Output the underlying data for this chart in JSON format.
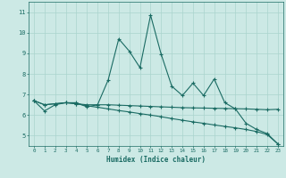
{
  "xlabel": "Humidex (Indice chaleur)",
  "xlim": [
    -0.5,
    23.5
  ],
  "ylim": [
    4.5,
    11.5
  ],
  "yticks": [
    5,
    6,
    7,
    8,
    9,
    10,
    11
  ],
  "xticks": [
    0,
    1,
    2,
    3,
    4,
    5,
    6,
    7,
    8,
    9,
    10,
    11,
    12,
    13,
    14,
    15,
    16,
    17,
    18,
    19,
    20,
    21,
    22,
    23
  ],
  "bg_color": "#cce9e5",
  "line_color": "#1a6b63",
  "grid_color": "#aad4ce",
  "line1_y": [
    6.7,
    6.2,
    6.5,
    6.6,
    6.6,
    6.4,
    6.5,
    7.7,
    9.7,
    9.1,
    8.3,
    10.85,
    8.95,
    7.4,
    6.95,
    7.55,
    6.95,
    7.75,
    6.6,
    6.3,
    5.6,
    5.3,
    5.1,
    4.6
  ],
  "line2_y": [
    6.7,
    6.5,
    6.55,
    6.6,
    6.55,
    6.5,
    6.5,
    6.5,
    6.48,
    6.46,
    6.44,
    6.42,
    6.4,
    6.38,
    6.36,
    6.35,
    6.34,
    6.33,
    6.32,
    6.31,
    6.3,
    6.28,
    6.26,
    6.28
  ],
  "line3_y": [
    6.7,
    6.5,
    6.55,
    6.6,
    6.55,
    6.45,
    6.38,
    6.3,
    6.22,
    6.15,
    6.07,
    6.0,
    5.92,
    5.83,
    5.75,
    5.67,
    5.6,
    5.52,
    5.45,
    5.38,
    5.3,
    5.2,
    5.05,
    4.6
  ]
}
